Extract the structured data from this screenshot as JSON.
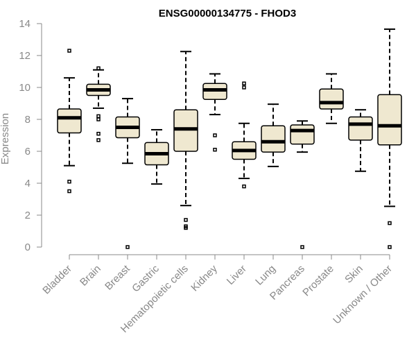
{
  "chart_data": {
    "type": "boxplot",
    "title": "ENSG00000134775 - FHOD3",
    "ylabel": "Expression",
    "xlabel": "",
    "ylim": [
      0,
      14
    ],
    "yticks": [
      0,
      2,
      4,
      6,
      8,
      10,
      12,
      14
    ],
    "box_color": "#efe8d0",
    "categories": [
      "Bladder",
      "Brain",
      "Breast",
      "Gastric",
      "Hematopoietic cells",
      "Kidney",
      "Liver",
      "Lung",
      "Pancreas",
      "Prostate",
      "Skin",
      "Unknown / Other"
    ],
    "boxes": [
      {
        "category": "Bladder",
        "whisker_low": 5.1,
        "q1": 7.15,
        "median": 8.1,
        "q3": 8.65,
        "whisker_high": 10.6,
        "outliers": [
          3.5,
          4.1,
          12.3
        ]
      },
      {
        "category": "Brain",
        "whisker_low": 8.7,
        "q1": 9.5,
        "median": 9.85,
        "q3": 10.2,
        "whisker_high": 11.1,
        "outliers": [
          6.7,
          7.1,
          8.0,
          8.2,
          11.2
        ]
      },
      {
        "category": "Breast",
        "whisker_low": 5.25,
        "q1": 6.85,
        "median": 7.5,
        "q3": 8.15,
        "whisker_high": 9.3,
        "outliers": [
          0
        ]
      },
      {
        "category": "Gastric",
        "whisker_low": 3.95,
        "q1": 5.15,
        "median": 5.85,
        "q3": 6.55,
        "whisker_high": 7.35,
        "outliers": []
      },
      {
        "category": "Hematopoietic cells",
        "whisker_low": 2.6,
        "q1": 6.0,
        "median": 7.4,
        "q3": 8.6,
        "whisker_high": 12.25,
        "outliers": [
          1.2,
          1.3,
          1.7
        ]
      },
      {
        "category": "Kidney",
        "whisker_low": 8.3,
        "q1": 9.25,
        "median": 9.85,
        "q3": 10.25,
        "whisker_high": 10.85,
        "outliers": [
          6.1,
          7.0
        ]
      },
      {
        "category": "Liver",
        "whisker_low": 4.3,
        "q1": 5.5,
        "median": 6.05,
        "q3": 6.6,
        "whisker_high": 7.75,
        "outliers": [
          3.8,
          10.0,
          10.25
        ]
      },
      {
        "category": "Lung",
        "whisker_low": 5.05,
        "q1": 5.95,
        "median": 6.6,
        "q3": 7.6,
        "whisker_high": 8.95,
        "outliers": []
      },
      {
        "category": "Pancreas",
        "whisker_low": 5.95,
        "q1": 6.45,
        "median": 7.3,
        "q3": 7.65,
        "whisker_high": 7.9,
        "outliers": [
          0
        ]
      },
      {
        "category": "Prostate",
        "whisker_low": 7.75,
        "q1": 8.65,
        "median": 9.05,
        "q3": 9.9,
        "whisker_high": 10.85,
        "outliers": []
      },
      {
        "category": "Skin",
        "whisker_low": 4.75,
        "q1": 6.7,
        "median": 7.7,
        "q3": 8.15,
        "whisker_high": 8.6,
        "outliers": []
      },
      {
        "category": "Unknown / Other",
        "whisker_low": 2.55,
        "q1": 6.4,
        "median": 7.6,
        "q3": 9.55,
        "whisker_high": 13.65,
        "outliers": [
          0,
          1.5
        ]
      }
    ]
  }
}
